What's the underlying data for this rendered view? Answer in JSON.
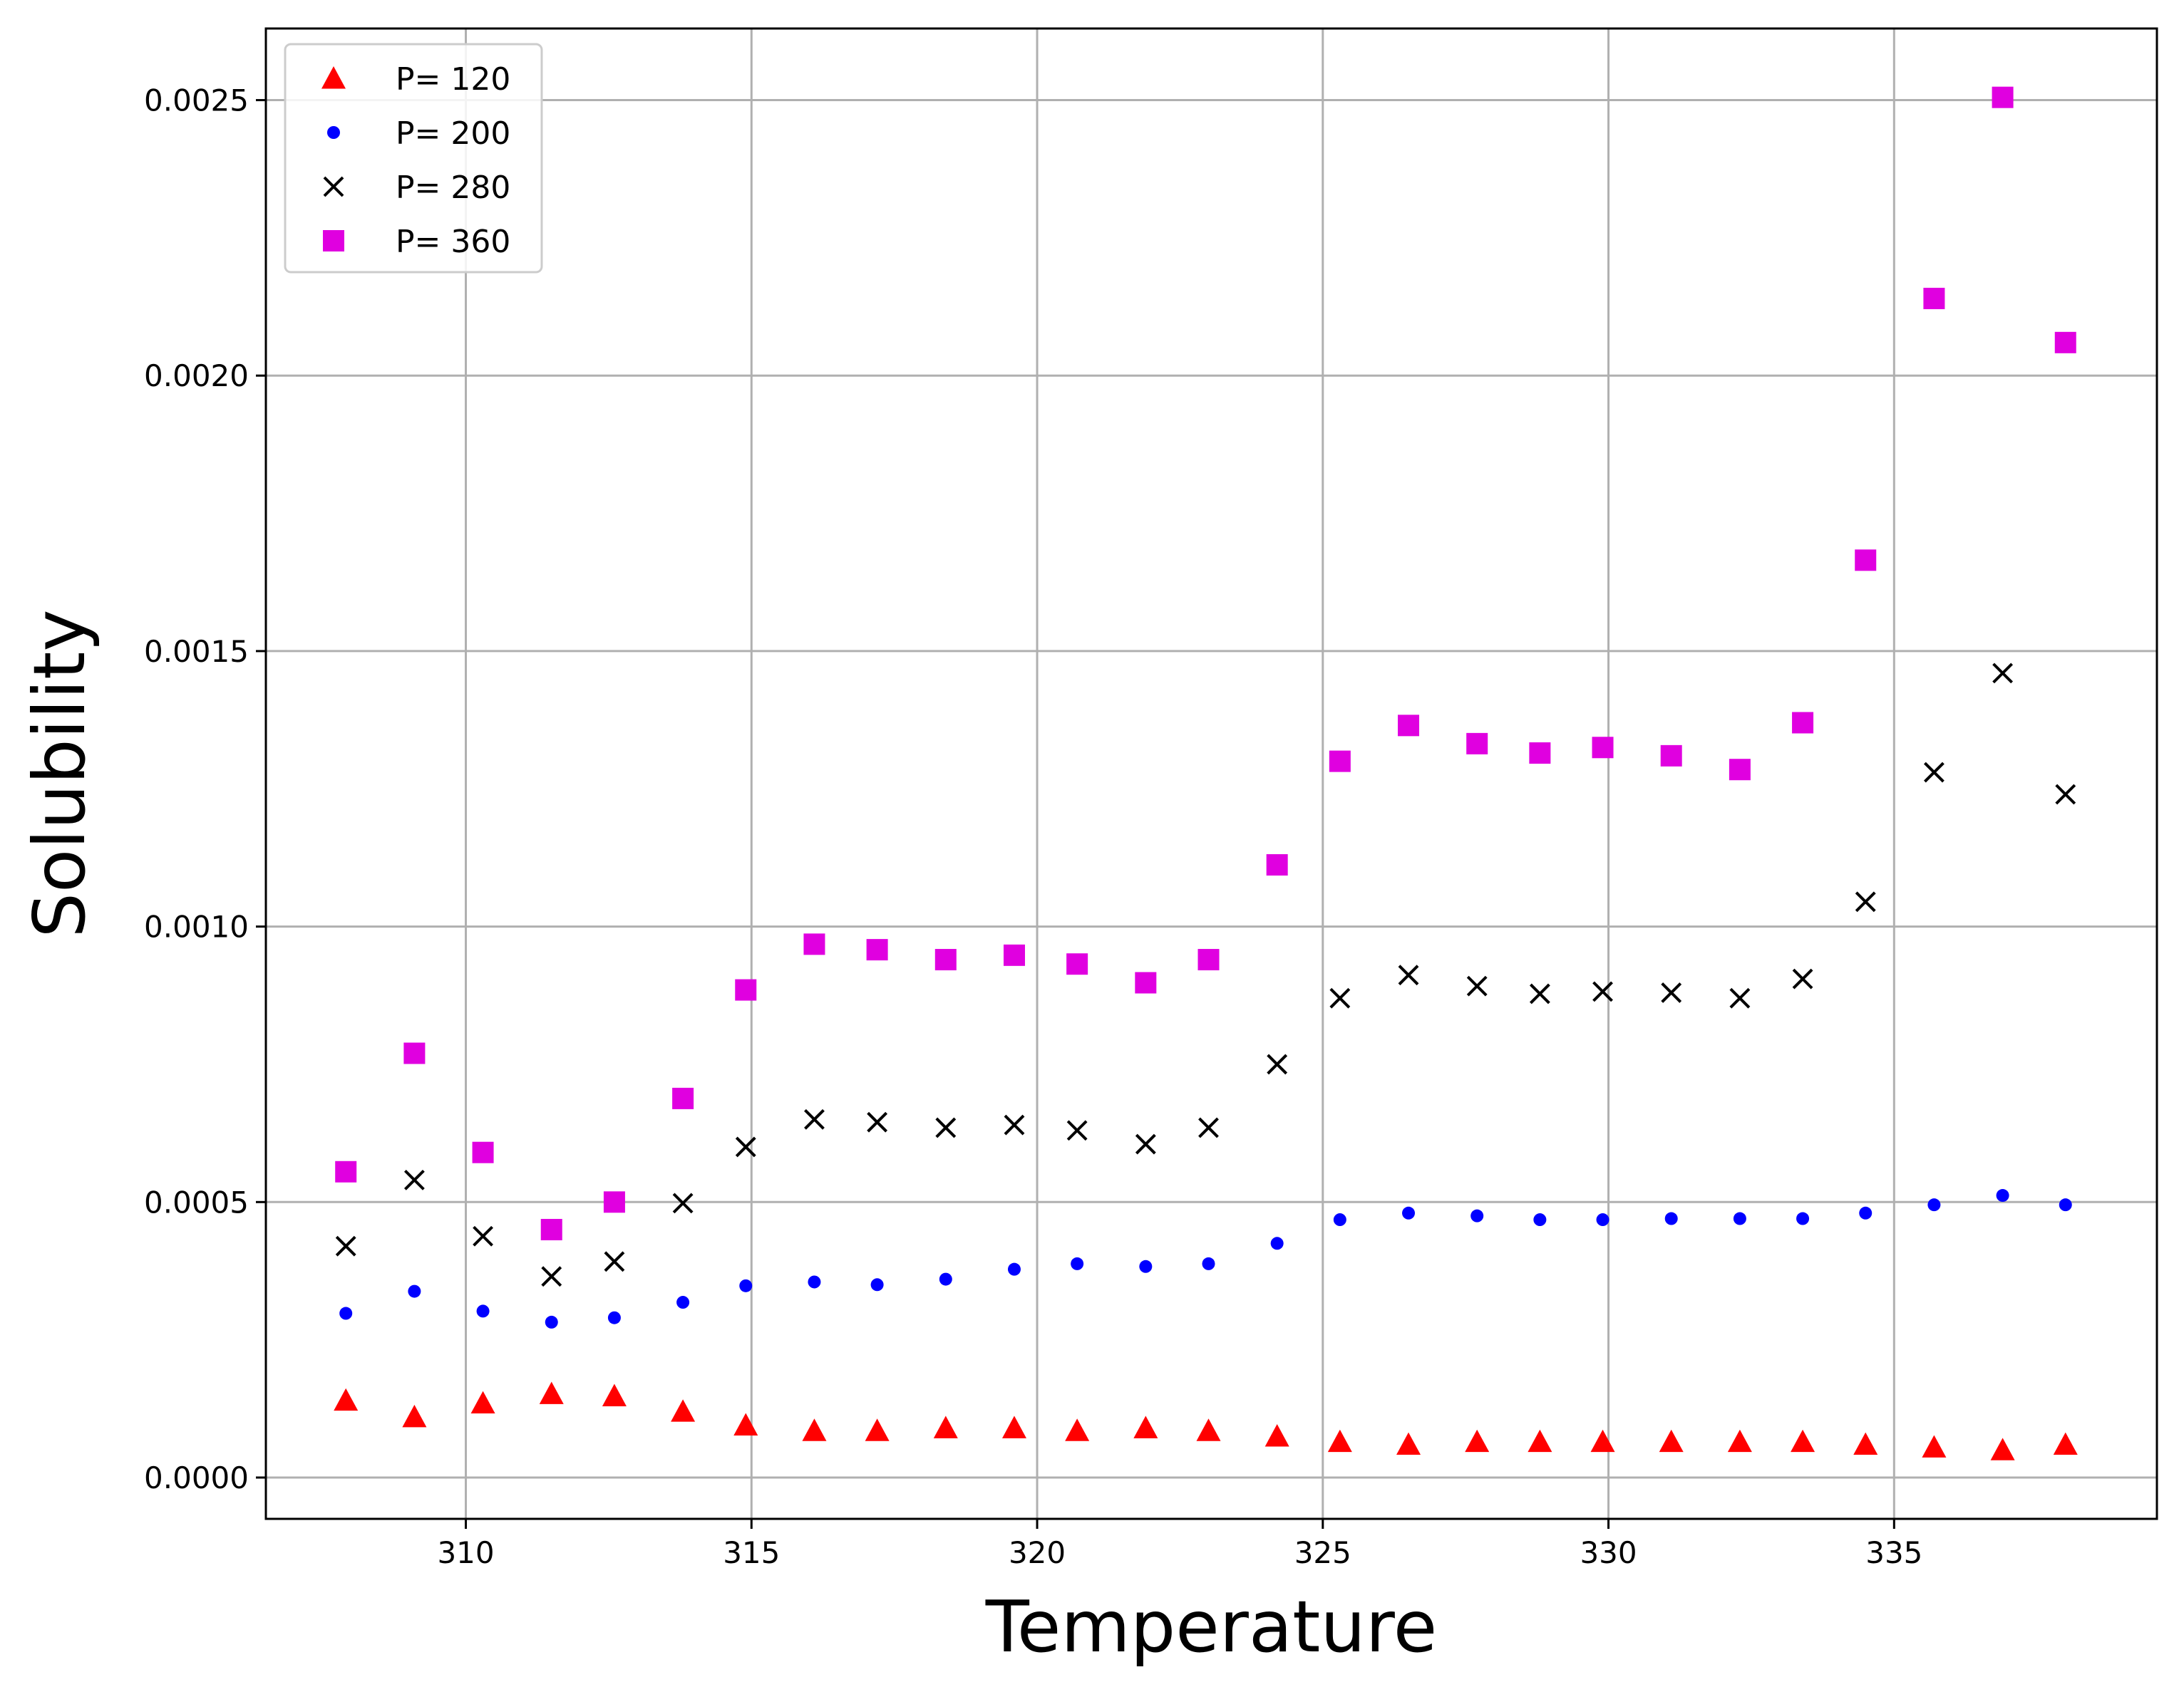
{
  "chart_data": {
    "type": "scatter",
    "title": "",
    "xlabel": "Temperature",
    "ylabel": "Solubility",
    "xlim": [
      306.5,
      339.6
    ],
    "ylim": [
      -7.5e-05,
      0.00263
    ],
    "xticks": [
      310,
      315,
      320,
      325,
      330,
      335
    ],
    "xtick_labels": [
      "310",
      "315",
      "320",
      "325",
      "330",
      "335"
    ],
    "yticks": [
      0.0,
      0.0005,
      0.001,
      0.0015,
      0.002,
      0.0025
    ],
    "ytick_labels": [
      "0.0000",
      "0.0005",
      "0.0010",
      "0.0015",
      "0.0020",
      "0.0025"
    ],
    "grid": true,
    "legend_position": "top-left",
    "x": [
      307.9,
      309.1,
      310.3,
      311.5,
      312.6,
      313.8,
      314.9,
      316.1,
      317.2,
      318.4,
      319.6,
      320.7,
      321.9,
      323.0,
      324.2,
      325.3,
      326.5,
      327.7,
      328.8,
      329.9,
      331.1,
      332.3,
      333.4,
      334.5,
      335.7,
      336.9,
      338.0
    ],
    "series": [
      {
        "name": "P= 120",
        "marker": "triangle",
        "color": "#ff0000",
        "values": [
          0.00014,
          0.00011,
          0.000135,
          0.000152,
          0.000148,
          0.00012,
          9.5e-05,
          8.5e-05,
          8.5e-05,
          9e-05,
          9e-05,
          8.5e-05,
          9e-05,
          8.5e-05,
          7.5e-05,
          6.5e-05,
          6e-05,
          6.5e-05,
          6.5e-05,
          6.5e-05,
          6.5e-05,
          6.5e-05,
          6.5e-05,
          6e-05,
          5.5e-05,
          5e-05,
          6e-05
        ]
      },
      {
        "name": "P= 200",
        "marker": "circle",
        "color": "#0000ff",
        "values": [
          0.000298,
          0.000338,
          0.000302,
          0.000282,
          0.00029,
          0.000318,
          0.000348,
          0.000355,
          0.00035,
          0.00036,
          0.000378,
          0.000388,
          0.000383,
          0.000388,
          0.000425,
          0.000468,
          0.00048,
          0.000475,
          0.000468,
          0.000468,
          0.00047,
          0.00047,
          0.00047,
          0.00048,
          0.000495,
          0.000512,
          0.000495
        ]
      },
      {
        "name": "P= 280",
        "marker": "x",
        "color": "#000000",
        "values": [
          0.00042,
          0.00054,
          0.000438,
          0.000365,
          0.000392,
          0.000498,
          0.0006,
          0.00065,
          0.000645,
          0.000635,
          0.00064,
          0.00063,
          0.000605,
          0.000635,
          0.00075,
          0.00087,
          0.000912,
          0.000892,
          0.000878,
          0.000882,
          0.00088,
          0.00087,
          0.000905,
          0.001045,
          0.00128,
          0.00146,
          0.00124
        ]
      },
      {
        "name": "P= 360",
        "marker": "square",
        "color": "#e000e0",
        "values": [
          0.000555,
          0.00077,
          0.00059,
          0.00045,
          0.0005,
          0.000688,
          0.000885,
          0.000968,
          0.000958,
          0.00094,
          0.000948,
          0.000932,
          0.000898,
          0.00094,
          0.001112,
          0.0013,
          0.001365,
          0.001332,
          0.001315,
          0.001325,
          0.00131,
          0.001285,
          0.00137,
          0.001665,
          0.00214,
          0.002505,
          0.00206
        ]
      }
    ]
  }
}
